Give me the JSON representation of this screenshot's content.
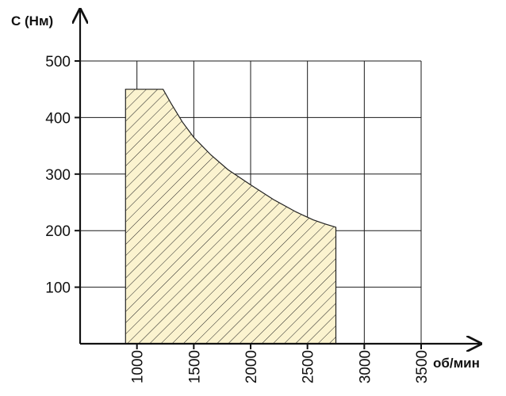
{
  "chart_data": {
    "type": "area",
    "title": "",
    "ylabel": "C (Нм)",
    "xlabel": "об/мин",
    "xlim": [
      500,
      3500
    ],
    "ylim": [
      0,
      500
    ],
    "x_ticks": [
      1000,
      1500,
      2000,
      2500,
      3000,
      3500
    ],
    "y_ticks": [
      100,
      200,
      300,
      400,
      500
    ],
    "x_tick_labels": [
      "1000",
      "1500",
      "2000",
      "2500",
      "3000",
      "3500"
    ],
    "y_tick_labels": [
      "100",
      "200",
      "300",
      "400",
      "500"
    ],
    "grid": true,
    "series": [
      {
        "fill": "hatched",
        "fill_color": "#fbf3cf",
        "x": [
          900,
          900,
          1230,
          1300,
          1400,
          1500,
          1650,
          1800,
          2000,
          2200,
          2400,
          2550,
          2650,
          2750,
          2750
        ],
        "y": [
          0,
          450,
          450,
          425,
          392,
          365,
          334,
          308,
          281,
          255,
          233,
          219,
          212,
          206,
          0
        ]
      }
    ]
  }
}
